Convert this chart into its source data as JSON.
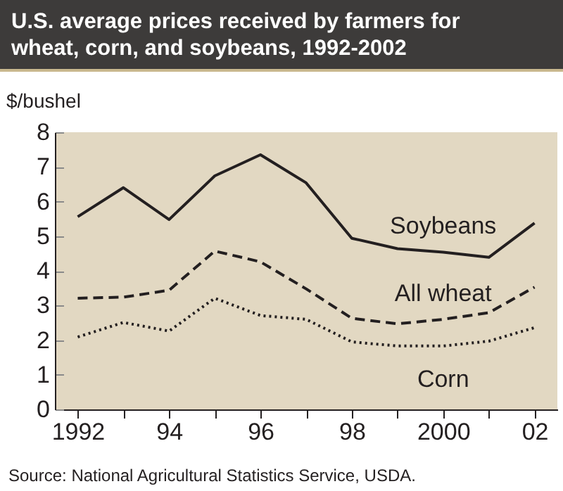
{
  "chart_data": {
    "type": "line",
    "title": "U.S. average prices received by farmers for wheat, corn, and soybeans, 1992-2002",
    "ylabel": "$/bushel",
    "x": [
      1992,
      1993,
      1994,
      1995,
      1996,
      1997,
      1998,
      1999,
      2000,
      2001,
      2002
    ],
    "series": [
      {
        "name": "Soybeans",
        "color": "#231f20",
        "line_style": "solid",
        "values": [
          5.56,
          6.4,
          5.48,
          6.74,
          7.35,
          6.54,
          4.94,
          4.64,
          4.54,
          4.39,
          5.38
        ]
      },
      {
        "name": "All wheat",
        "color": "#231f20",
        "line_style": "dashed",
        "values": [
          3.21,
          3.24,
          3.44,
          4.57,
          4.26,
          3.48,
          2.63,
          2.47,
          2.6,
          2.79,
          3.53
        ]
      },
      {
        "name": "Corn",
        "color": "#231f20",
        "line_style": "dotted",
        "values": [
          2.09,
          2.51,
          2.26,
          3.21,
          2.71,
          2.6,
          1.95,
          1.83,
          1.83,
          1.97,
          2.36
        ]
      }
    ],
    "xlim": [
      1991.5,
      2002.5
    ],
    "ylim": [
      0,
      8
    ],
    "xticks": [
      {
        "value": 1992,
        "label": "1992"
      },
      {
        "value": 1993,
        "label": null
      },
      {
        "value": 1994,
        "label": "94"
      },
      {
        "value": 1995,
        "label": null
      },
      {
        "value": 1996,
        "label": "96"
      },
      {
        "value": 1997,
        "label": null
      },
      {
        "value": 1998,
        "label": "98"
      },
      {
        "value": 1999,
        "label": null
      },
      {
        "value": 2000,
        "label": "2000"
      },
      {
        "value": 2001,
        "label": null
      },
      {
        "value": 2002,
        "label": "02"
      }
    ],
    "yticks": [
      0,
      1,
      2,
      3,
      4,
      5,
      6,
      7,
      8
    ],
    "annotations": [
      "Source:  National Agricultural Statistics Service, USDA."
    ]
  }
}
